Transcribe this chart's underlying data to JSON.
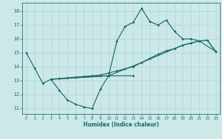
{
  "xlabel": "Humidex (Indice chaleur)",
  "bg_color": "#cce8e8",
  "grid_color": "#aad4d4",
  "line_color": "#1a6b6b",
  "xlim": [
    -0.5,
    23.5
  ],
  "ylim": [
    10.6,
    18.6
  ],
  "yticks": [
    11,
    12,
    13,
    14,
    15,
    16,
    17,
    18
  ],
  "xticks": [
    0,
    1,
    2,
    3,
    4,
    5,
    6,
    7,
    8,
    9,
    10,
    11,
    12,
    13,
    14,
    15,
    16,
    17,
    18,
    19,
    20,
    21,
    22,
    23
  ],
  "line1_x": [
    0,
    1,
    2,
    3,
    4,
    5,
    6,
    7,
    8,
    9,
    10,
    13
  ],
  "line1_y": [
    15.0,
    13.9,
    12.8,
    13.1,
    12.3,
    11.6,
    11.3,
    11.1,
    11.0,
    12.4,
    13.35,
    13.35
  ],
  "line2_x": [
    3,
    10,
    11,
    12,
    13,
    14,
    15,
    16,
    17,
    18,
    19,
    20,
    21,
    23
  ],
  "line2_y": [
    13.1,
    13.35,
    15.85,
    16.9,
    17.2,
    18.2,
    17.25,
    17.0,
    17.35,
    16.55,
    16.0,
    16.0,
    15.85,
    15.1
  ],
  "line3_x": [
    3,
    10,
    14,
    19,
    20,
    21,
    22,
    23
  ],
  "line3_y": [
    13.1,
    13.35,
    14.3,
    15.55,
    15.7,
    15.85,
    15.9,
    15.1
  ],
  "line4_x": [
    3,
    4,
    5,
    6,
    7,
    8,
    9,
    10,
    11,
    12,
    13,
    14,
    15,
    16,
    17,
    18,
    19,
    20,
    21,
    22,
    23
  ],
  "line4_y": [
    13.1,
    13.15,
    13.2,
    13.25,
    13.3,
    13.35,
    13.4,
    13.55,
    13.7,
    13.85,
    14.0,
    14.3,
    14.6,
    14.9,
    15.15,
    15.3,
    15.55,
    15.7,
    15.85,
    15.9,
    15.1
  ]
}
